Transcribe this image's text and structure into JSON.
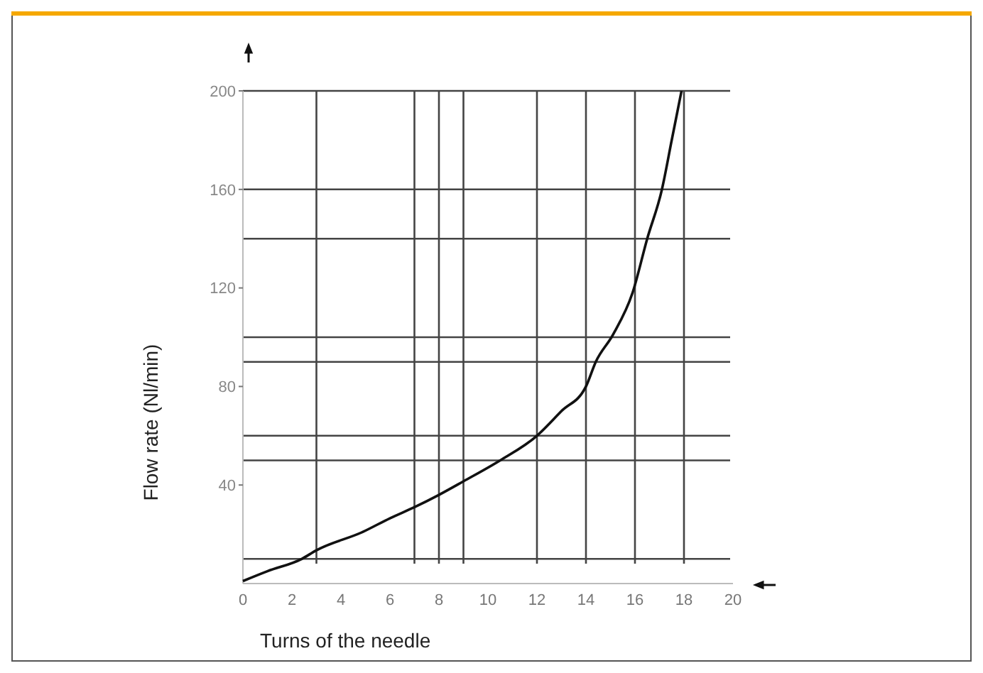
{
  "chart_data": {
    "type": "line",
    "xlabel": "Turns of the needle",
    "ylabel": "Flow rate (Nl/min)",
    "xlim": [
      0,
      20
    ],
    "ylim": [
      0,
      200
    ],
    "xticks": [
      0,
      2,
      4,
      6,
      8,
      10,
      12,
      14,
      16,
      18,
      20
    ],
    "yticks": [
      40,
      80,
      120,
      160,
      200
    ],
    "grid": false,
    "marker": "none",
    "line_style": "solid",
    "ref_lines": [
      {
        "axis": "x",
        "value": 3
      },
      {
        "axis": "x",
        "value": 7
      },
      {
        "axis": "x",
        "value": 8
      },
      {
        "axis": "x",
        "value": 9
      },
      {
        "axis": "x",
        "value": 12
      },
      {
        "axis": "x",
        "value": 14
      },
      {
        "axis": "x",
        "value": 16
      },
      {
        "axis": "x",
        "value": 18
      },
      {
        "axis": "y",
        "value": 10
      },
      {
        "axis": "y",
        "value": 50
      },
      {
        "axis": "y",
        "value": 60
      },
      {
        "axis": "y",
        "value": 90
      },
      {
        "axis": "y",
        "value": 100
      },
      {
        "axis": "y",
        "value": 140
      },
      {
        "axis": "y",
        "value": 160
      }
    ],
    "series": [
      {
        "color": "#111111",
        "x": [
          0,
          1,
          2.4,
          3,
          4.9,
          6,
          7,
          8,
          9,
          10.5,
          12,
          13,
          14,
          14.4,
          15.1,
          15.9,
          16.5,
          17.1,
          17.5,
          17.9
        ],
        "values": [
          1,
          5,
          10,
          13.5,
          21,
          26.5,
          31,
          36,
          41.5,
          50,
          60,
          70,
          80,
          90,
          101,
          118,
          140,
          160,
          180,
          200
        ]
      }
    ]
  }
}
